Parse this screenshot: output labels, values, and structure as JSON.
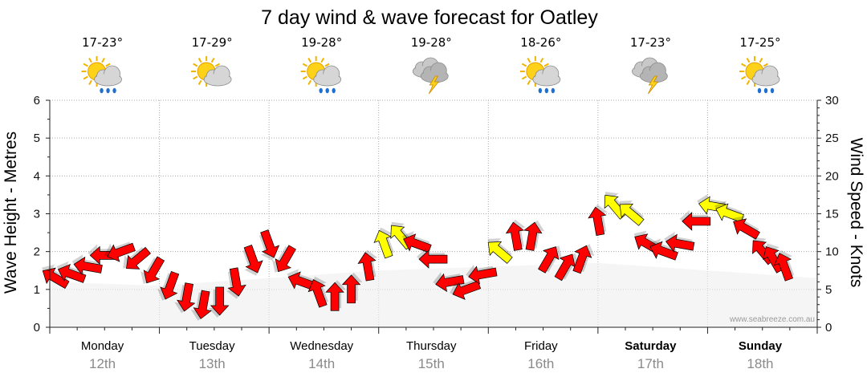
{
  "colors": {
    "strong": "#ff0000",
    "moderate": "#ffff00",
    "grid": "#aaaaaa",
    "wave": "#eeeeee"
  },
  "chart_data": {
    "type": "line",
    "title": "7 day wind & wave forecast for Oatley",
    "ylabel_left": "Wave Height - Metres",
    "ylabel_right": "Wind Speed - Knots",
    "ylim_left": [
      0,
      6
    ],
    "ylim_right": [
      0,
      30
    ],
    "yticks_left": [
      "0",
      "1",
      "2",
      "3",
      "4",
      "5",
      "6"
    ],
    "yticks_right": [
      "0",
      "5",
      "10",
      "15",
      "20",
      "25",
      "30"
    ],
    "grid": true,
    "credit": "www.seabreeze.com.au",
    "days": [
      {
        "day": "Monday",
        "date": "12th",
        "temp": "17-23°",
        "icon": "partly-cloudy-showers-icon",
        "bold": false
      },
      {
        "day": "Tuesday",
        "date": "13th",
        "temp": "17-29°",
        "icon": "partly-cloudy-icon",
        "bold": false
      },
      {
        "day": "Wednesday",
        "date": "14th",
        "temp": "19-28°",
        "icon": "partly-cloudy-showers-icon",
        "bold": false
      },
      {
        "day": "Thursday",
        "date": "15th",
        "temp": "19-28°",
        "icon": "storm-icon",
        "bold": false
      },
      {
        "day": "Friday",
        "date": "16th",
        "temp": "18-26°",
        "icon": "partly-cloudy-showers-icon",
        "bold": false
      },
      {
        "day": "Saturday",
        "date": "17th",
        "temp": "17-23°",
        "icon": "storm-icon",
        "bold": true
      },
      {
        "day": "Sunday",
        "date": "18th",
        "temp": "17-25°",
        "icon": "partly-cloudy-showers-icon",
        "bold": true
      }
    ],
    "wind_series": {
      "name": "Wind Speed",
      "x_days": [
        0.05,
        0.2,
        0.35,
        0.5,
        0.65,
        0.8,
        0.95,
        1.1,
        1.25,
        1.4,
        1.55,
        1.7,
        1.85,
        2.0,
        2.15,
        2.3,
        2.45,
        2.6,
        2.75,
        2.9,
        3.05,
        3.2,
        3.35,
        3.5,
        3.65,
        3.8,
        3.95,
        4.1,
        4.25,
        4.4,
        4.55,
        4.7,
        4.85,
        5.0,
        5.15,
        5.3,
        5.45,
        5.6,
        5.75,
        5.9,
        6.05,
        6.2,
        6.35,
        6.5,
        6.6,
        6.7
      ],
      "knots": [
        6.5,
        7,
        8,
        9.5,
        10,
        9,
        7.5,
        5.5,
        4,
        3,
        3.5,
        6,
        9,
        11,
        9,
        6,
        4.5,
        4,
        5,
        8,
        11,
        12,
        11,
        9,
        6,
        5,
        7,
        10,
        12,
        12,
        9,
        8,
        9,
        14,
        16,
        15,
        11,
        10,
        11,
        14,
        16,
        15,
        13,
        10,
        9,
        8
      ],
      "rotation_deg": [
        210,
        200,
        190,
        180,
        160,
        140,
        120,
        110,
        100,
        100,
        90,
        80,
        70,
        70,
        120,
        200,
        250,
        270,
        270,
        260,
        250,
        230,
        200,
        180,
        170,
        160,
        170,
        220,
        260,
        280,
        300,
        300,
        290,
        260,
        230,
        220,
        210,
        200,
        190,
        180,
        190,
        200,
        210,
        230,
        240,
        250
      ]
    },
    "wave_series": {
      "name": "Wave Height",
      "x_days": [
        0,
        1,
        2,
        3,
        4,
        5,
        6,
        7
      ],
      "metres": [
        1.2,
        1.1,
        1.3,
        1.5,
        1.6,
        1.7,
        1.5,
        1.3
      ]
    }
  }
}
